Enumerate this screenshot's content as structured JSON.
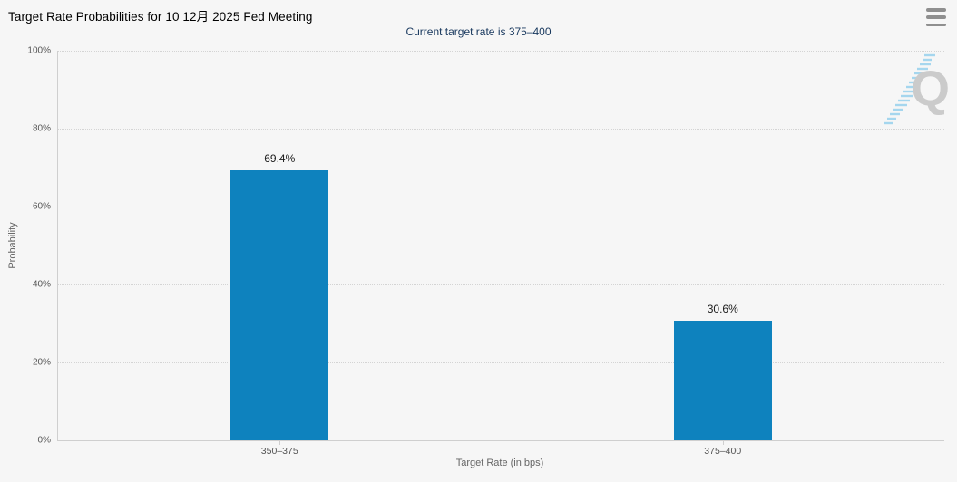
{
  "header": {
    "title": "Target Rate Probabilities for 10 12月 2025 Fed Meeting",
    "subtitle": "Current target rate is 375–400"
  },
  "toolbar": {
    "menu_icon": "hamburger-icon"
  },
  "watermark": {
    "icon": "quikstrike-q-logo"
  },
  "chart_data": {
    "type": "bar",
    "title": "Target Rate Probabilities for 10 12月 2025 Fed Meeting",
    "subtitle": "Current target rate is 375–400",
    "categories": [
      "350–375",
      "375–400"
    ],
    "values": [
      69.4,
      30.6
    ],
    "value_labels": [
      "69.4%",
      "30.6%"
    ],
    "xlabel": "Target Rate (in bps)",
    "ylabel": "Probability",
    "ylim": [
      0,
      100
    ],
    "yticks": [
      0,
      20,
      40,
      60,
      80,
      100
    ],
    "ytick_labels": [
      "0%",
      "20%",
      "40%",
      "60%",
      "80%",
      "100%"
    ],
    "grid": true,
    "legend": false,
    "bar_color": "#0e82be"
  },
  "colors": {
    "background": "#f6f6f6",
    "bar": "#0e82be",
    "subtitle_text": "#17375d",
    "axis_line": "#cfcfcf",
    "gridline": "#d4d4d4",
    "watermark_gray": "#cbcbcb",
    "watermark_blue": "#a5d6ee"
  }
}
